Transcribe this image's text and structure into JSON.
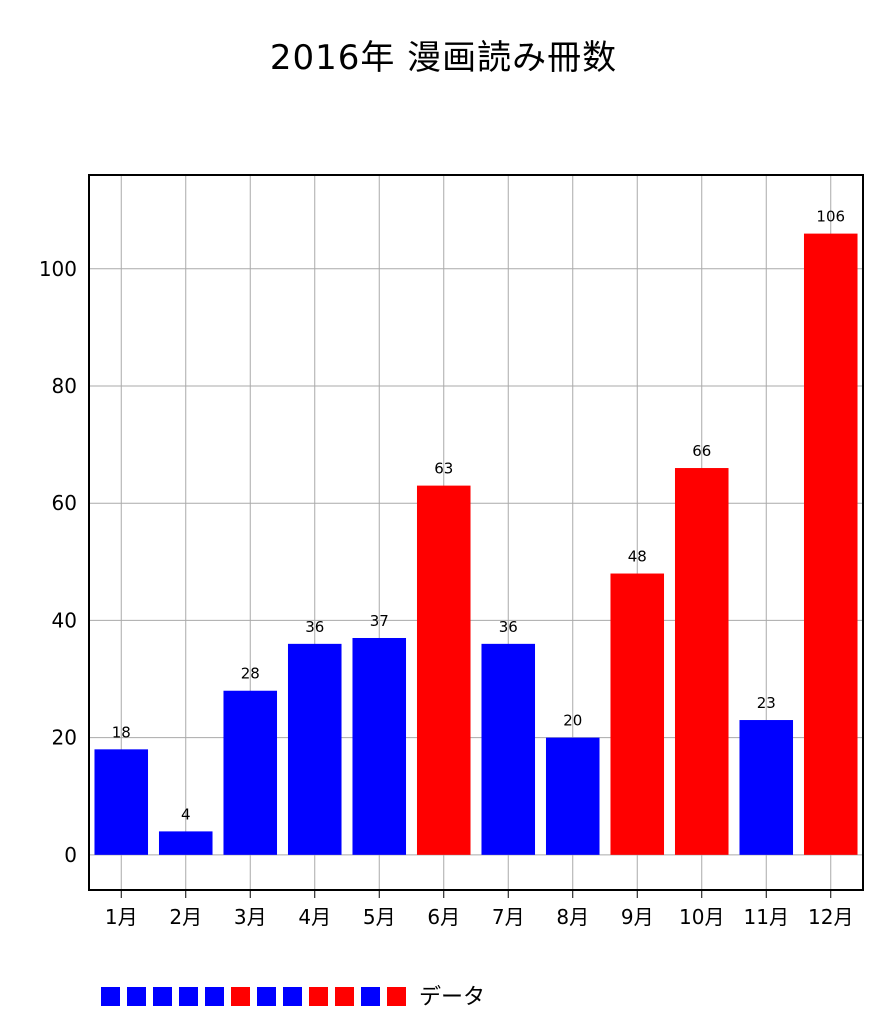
{
  "chart_data": {
    "type": "bar",
    "title": "2016年 漫画読み冊数",
    "xlabel": "",
    "ylabel": "",
    "categories": [
      "1月",
      "2月",
      "3月",
      "4月",
      "5月",
      "6月",
      "7月",
      "8月",
      "9月",
      "10月",
      "11月",
      "12月"
    ],
    "series": [
      {
        "name": "データ",
        "values": [
          18,
          4,
          28,
          36,
          37,
          63,
          36,
          20,
          48,
          66,
          23,
          106
        ],
        "colors": [
          "#0000ff",
          "#0000ff",
          "#0000ff",
          "#0000ff",
          "#0000ff",
          "#ff0000",
          "#0000ff",
          "#0000ff",
          "#ff0000",
          "#ff0000",
          "#0000ff",
          "#ff0000"
        ]
      }
    ],
    "ylim": [
      -6,
      116
    ],
    "yticks": [
      0,
      20,
      40,
      60,
      80,
      100
    ],
    "grid": true,
    "legend_position": "bottom-left",
    "colors": {
      "low": "#0000ff",
      "high": "#ff0000",
      "grid": "#aaaaaa",
      "frame": "#000000"
    }
  }
}
